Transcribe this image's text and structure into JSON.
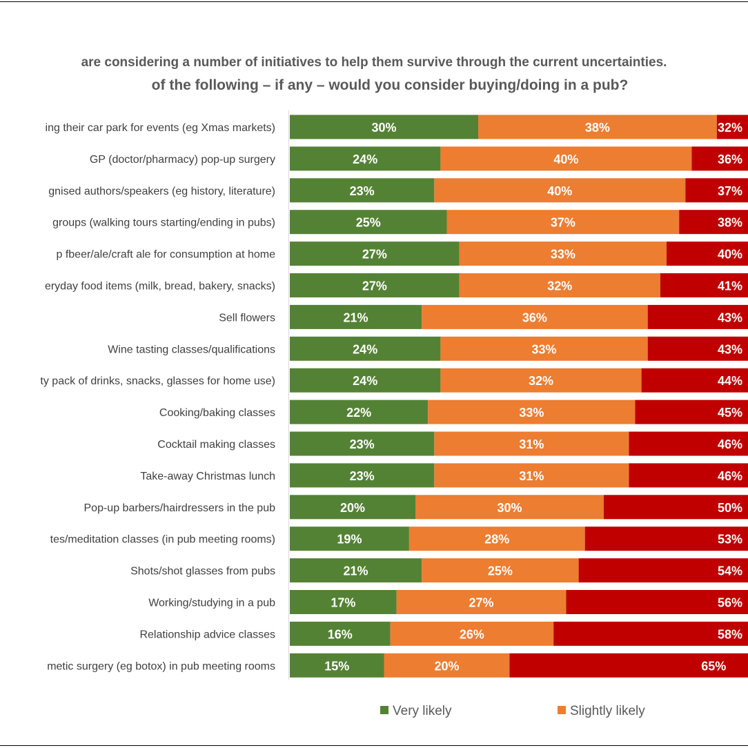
{
  "chart_data": {
    "type": "bar",
    "orientation": "horizontal",
    "stacked": true,
    "title": [
      "are considering a number of initiatives to help them survive through the current uncertainties.",
      "of the following – if any – would you consider buying/doing in a pub?"
    ],
    "categories": [
      "ing their car park for events (eg Xmas markets)",
      "GP (doctor/pharmacy) pop-up surgery",
      "gnised authors/speakers (eg history, literature)",
      "groups (walking tours starting/ending in pubs)",
      "p fbeer/ale/craft ale for consumption at home",
      "eryday food items (milk, bread, bakery, snacks)",
      "Sell flowers",
      "Wine tasting classes/qualifications",
      "ty pack of drinks, snacks, glasses for home use)",
      "Cooking/baking classes",
      "Cocktail making classes",
      "Take-away Christmas lunch",
      "Pop-up barbers/hairdressers in the pub",
      "tes/meditation classes (in pub meeting rooms)",
      "Shots/shot glasses from pubs",
      "Working/studying in a pub",
      "Relationship advice classes",
      "metic surgery (eg botox) in pub meeting rooms"
    ],
    "series": [
      {
        "name": "Very likely",
        "color": "#548235",
        "values": [
          30,
          24,
          23,
          25,
          27,
          27,
          21,
          24,
          24,
          22,
          23,
          23,
          20,
          19,
          21,
          17,
          16,
          15
        ]
      },
      {
        "name": "Slightly likely",
        "color": "#ED7D31",
        "values": [
          38,
          40,
          40,
          37,
          33,
          32,
          36,
          33,
          32,
          33,
          31,
          31,
          30,
          28,
          25,
          27,
          26,
          20
        ]
      },
      {
        "color": "#C00000",
        "values": [
          32,
          36,
          37,
          38,
          40,
          41,
          43,
          43,
          44,
          45,
          46,
          46,
          50,
          53,
          54,
          56,
          58,
          65
        ]
      }
    ],
    "value_format": "percent",
    "xlim": [
      0,
      100
    ],
    "legend_position": "bottom",
    "grid": false
  }
}
